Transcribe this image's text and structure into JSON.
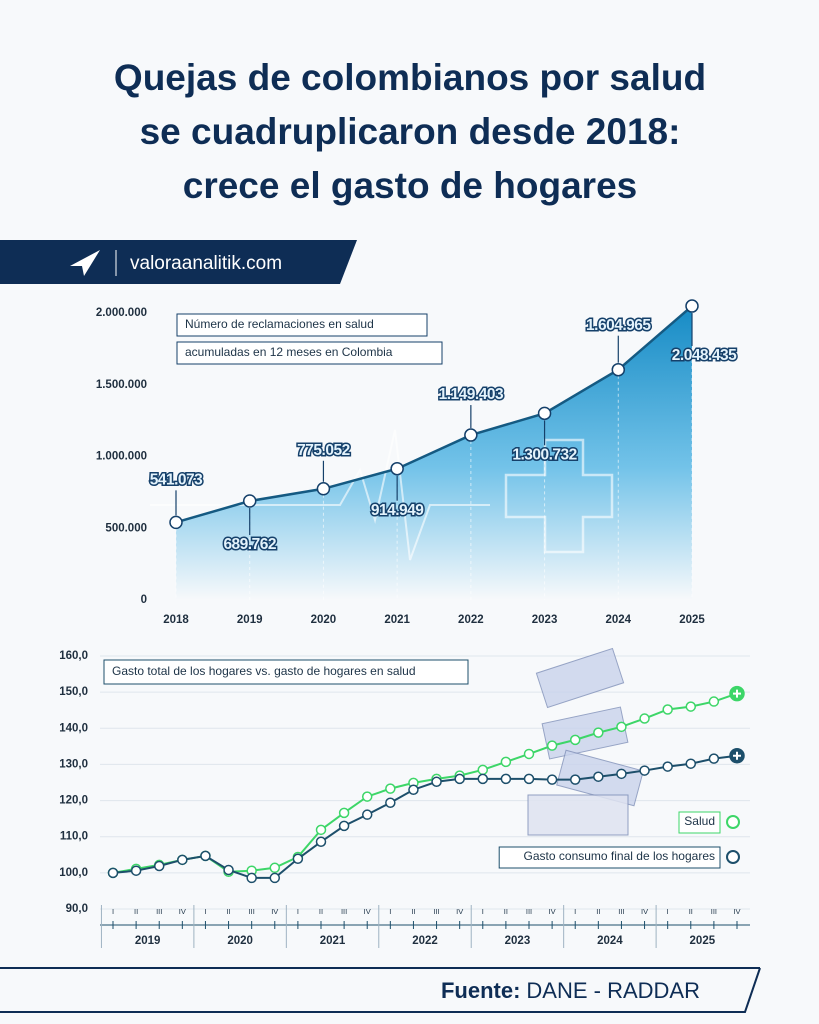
{
  "title": [
    "Quejas de colombianos por salud",
    "se cuadruplicaron desde 2018:",
    "crece el gasto de hogares"
  ],
  "brand": "valoraanalitik.com",
  "source_label": "Fuente:",
  "source": "DANE - RADDAR",
  "chart_data": [
    {
      "type": "area",
      "annotations": [
        "Número de reclamaciones en salud",
        "acumuladas en 12 meses en Colombia"
      ],
      "categories": [
        "2018",
        "2019",
        "2020",
        "2021",
        "2022",
        "2023",
        "2024",
        "2025"
      ],
      "values": [
        541073,
        689762,
        775052,
        914949,
        1149403,
        1300732,
        1604965,
        2048435
      ],
      "value_labels": [
        "541.073",
        "689.762",
        "775.052",
        "914.949",
        "1.149.403",
        "1.300.732",
        "1.604.965",
        "2.048.435"
      ],
      "color": "#155a82",
      "ylim": [
        0,
        2100000
      ],
      "yticks": [
        0,
        {
          "value": 500000,
          "label": "500.000"
        },
        {
          "value": 1000000,
          "label": "1.000.000"
        },
        {
          "value": 1500000,
          "label": "1.500.000"
        },
        {
          "value": 2000000,
          "label": "2.000.000"
        }
      ]
    },
    {
      "type": "line",
      "annotation": "Gasto total de los hogares vs. gasto de hogares en salud",
      "categories": [
        "I",
        "II",
        "III",
        "IV",
        "I",
        "II",
        "III",
        "IV",
        "I",
        "II",
        "III",
        "IV",
        "I",
        "II",
        "III",
        "IV",
        "I",
        "II",
        "III",
        "IV",
        "I",
        "II",
        "III",
        "IV",
        "I",
        "II",
        "III",
        "IV"
      ],
      "years": [
        "2019",
        "2020",
        "2021",
        "2022",
        "2023",
        "2024",
        "2025"
      ],
      "series": [
        {
          "name": "Salud",
          "color": "#3dd668",
          "values": [
            100.0,
            101.1,
            102.2,
            103.6,
            104.7,
            100.3,
            100.6,
            101.4,
            104.4,
            111.9,
            116.6,
            121.1,
            123.3,
            124.9,
            126.0,
            126.9,
            128.5,
            130.7,
            132.9,
            135.2,
            136.8,
            138.8,
            140.4,
            142.7,
            145.2,
            146.0,
            147.4,
            149.6
          ]
        },
        {
          "name": "Gasto consumo final de los hogares",
          "color": "#1d4f6b",
          "values": [
            100.0,
            100.6,
            101.9,
            103.6,
            104.7,
            100.8,
            98.6,
            98.6,
            103.9,
            108.6,
            113.0,
            116.1,
            119.4,
            123.0,
            125.2,
            126.0,
            126.0,
            126.0,
            126.0,
            125.8,
            125.8,
            126.6,
            127.4,
            128.3,
            129.4,
            130.2,
            131.6,
            132.4
          ]
        }
      ],
      "ylim": [
        90,
        160
      ],
      "yticks": [
        {
          "value": 90,
          "label": "90,0"
        },
        {
          "value": 100,
          "label": "100,0"
        },
        {
          "value": 110,
          "label": "110,0"
        },
        {
          "value": 120,
          "label": "120,0"
        },
        {
          "value": 130,
          "label": "130,0"
        },
        {
          "value": 140,
          "label": "140,0"
        },
        {
          "value": 150,
          "label": "150,0"
        },
        {
          "value": 160,
          "label": "160,0"
        }
      ],
      "grid": true
    }
  ]
}
